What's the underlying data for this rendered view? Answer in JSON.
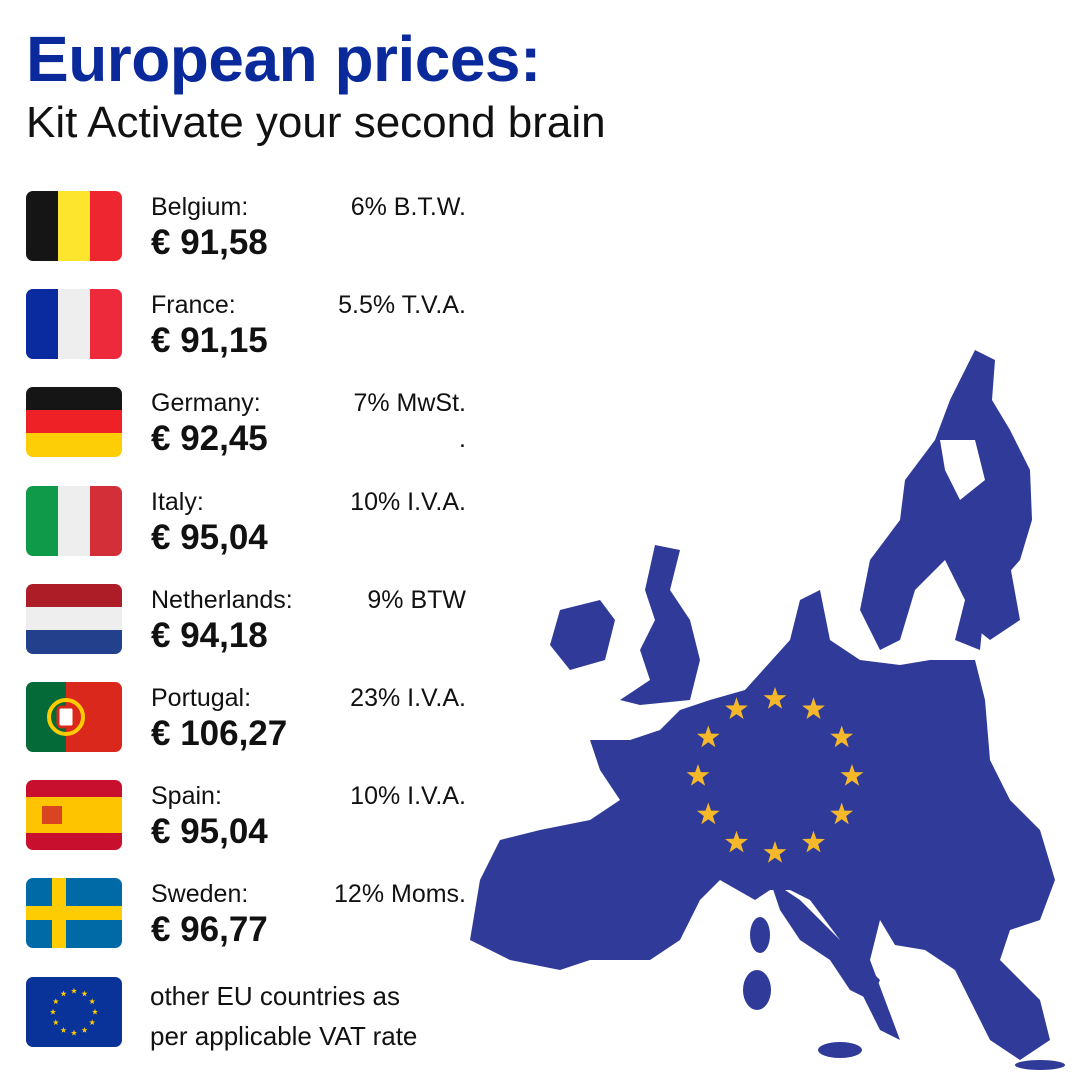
{
  "header": {
    "title": "European prices:",
    "subtitle": "Kit Activate your second brain"
  },
  "countries": [
    {
      "name": "Belgium:",
      "price": "€ 91,58",
      "vat": "6% B.T.W.",
      "colors": [
        "#151515",
        "#fde52e",
        "#ee2630"
      ]
    },
    {
      "name": "France:",
      "price": "€ 91,15",
      "vat": "5.5% T.V.A.",
      "colors": [
        "#0a2aa0",
        "#eeeeee",
        "#ec2a3b"
      ]
    },
    {
      "name": "Germany:",
      "price": "€ 92,45",
      "vat": "7% MwSt.",
      "extra": ".",
      "colors": [
        "#151515",
        "#ee2126",
        "#fdcd05"
      ]
    },
    {
      "name": "Italy:",
      "price": "€ 95,04",
      "vat": "10% I.V.A.",
      "colors": [
        "#0e9a48",
        "#eeeeee",
        "#d22f38"
      ]
    },
    {
      "name": "Netherlands:",
      "price": "€ 94,18",
      "vat": "9% BTW",
      "colors": [
        "#ad1d28",
        "#eeeeee",
        "#22408c"
      ]
    },
    {
      "name": "Portugal:",
      "price": "€ 106,27",
      "vat": "23% I.V.A.",
      "colors": [
        "#046a38",
        "#da291c",
        "#ffcc00"
      ]
    },
    {
      "name": "Spain:",
      "price": "€ 95,04",
      "vat": "10% I.V.A.",
      "colors": [
        "#c8102e",
        "#ffc400",
        "#c8102e"
      ]
    },
    {
      "name": "Sweden:",
      "price": "€ 96,77",
      "vat": "12% Moms.",
      "colors": [
        "#006aa7",
        "#fecc02"
      ]
    }
  ],
  "other": {
    "line1": "other EU countries as",
    "line2": "per applicable VAT rate",
    "flag_colors": [
      "#0a3399",
      "#ffcc00"
    ]
  },
  "map": {
    "fill": "#303a98",
    "star_color": "#f5b82a"
  }
}
